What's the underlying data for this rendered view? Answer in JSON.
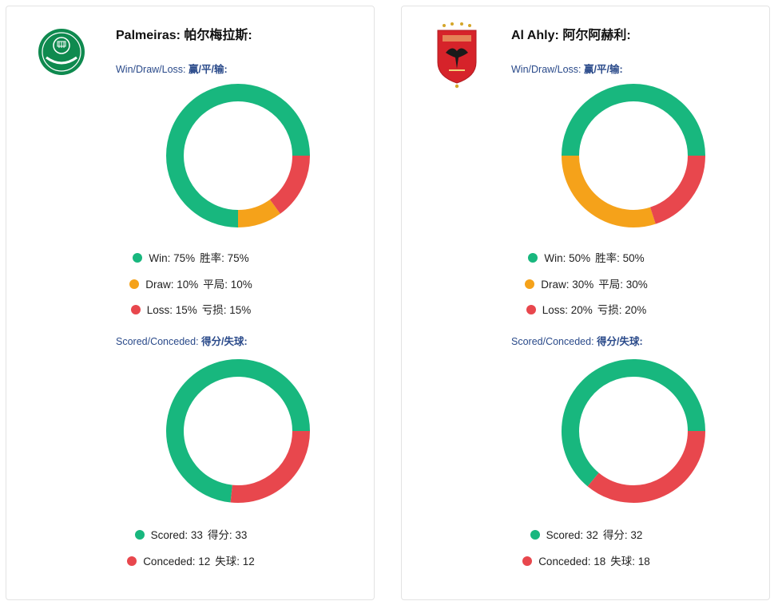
{
  "colors": {
    "win": "#18b77e",
    "draw": "#f5a21a",
    "loss": "#e8474d",
    "scored": "#18b77e",
    "conceded": "#e8474d"
  },
  "teams": [
    {
      "name": "Palmeiras:",
      "name_cn": "帕尔梅拉斯:",
      "logo_icon": "palmeiras-crest",
      "wdl_label": "Win/Draw/Loss:",
      "wdl_label_cn": "赢/平/输:",
      "legend_wdl": [
        {
          "key": "win",
          "en": "Win: 75%",
          "cn": "胜率: 75%"
        },
        {
          "key": "draw",
          "en": "Draw: 10%",
          "cn": "平局: 10%"
        },
        {
          "key": "loss",
          "en": "Loss: 15%",
          "cn": "亏损:  15%"
        }
      ],
      "sc_label": "Scored/Conceded:",
      "sc_label_cn": "得分/失球:",
      "legend_sc": [
        {
          "key": "scored",
          "en": "Scored: 33",
          "cn": "得分:  33"
        },
        {
          "key": "conceded",
          "en": "Conceded: 12",
          "cn": "失球:  12"
        }
      ]
    },
    {
      "name": "Al Ahly:",
      "name_cn": "阿尔阿赫利:",
      "logo_icon": "al-ahly-crest",
      "wdl_label": "Win/Draw/Loss:",
      "wdl_label_cn": "赢/平/输:",
      "legend_wdl": [
        {
          "key": "win",
          "en": "Win: 50%",
          "cn": "胜率: 50%"
        },
        {
          "key": "draw",
          "en": "Draw: 30%",
          "cn": "平局: 30%"
        },
        {
          "key": "loss",
          "en": "Loss: 20%",
          "cn": "亏损:  20%"
        }
      ],
      "sc_label": "Scored/Conceded:",
      "sc_label_cn": "得分/失球:",
      "legend_sc": [
        {
          "key": "scored",
          "en": "Scored: 32",
          "cn": "得分: 32"
        },
        {
          "key": "conceded",
          "en": "Conceded: 18",
          "cn": "失球:  18"
        }
      ]
    }
  ],
  "chart_data": [
    {
      "type": "pie",
      "donut": true,
      "team": "Palmeiras",
      "categories": [
        "Win",
        "Draw",
        "Loss"
      ],
      "values": [
        75,
        10,
        15
      ],
      "unit": "%"
    },
    {
      "type": "pie",
      "donut": true,
      "team": "Palmeiras",
      "categories": [
        "Scored",
        "Conceded"
      ],
      "values": [
        33,
        12
      ]
    },
    {
      "type": "pie",
      "donut": true,
      "team": "Al Ahly",
      "categories": [
        "Win",
        "Draw",
        "Loss"
      ],
      "values": [
        50,
        30,
        20
      ],
      "unit": "%"
    },
    {
      "type": "pie",
      "donut": true,
      "team": "Al Ahly",
      "categories": [
        "Scored",
        "Conceded"
      ],
      "values": [
        32,
        18
      ]
    }
  ]
}
